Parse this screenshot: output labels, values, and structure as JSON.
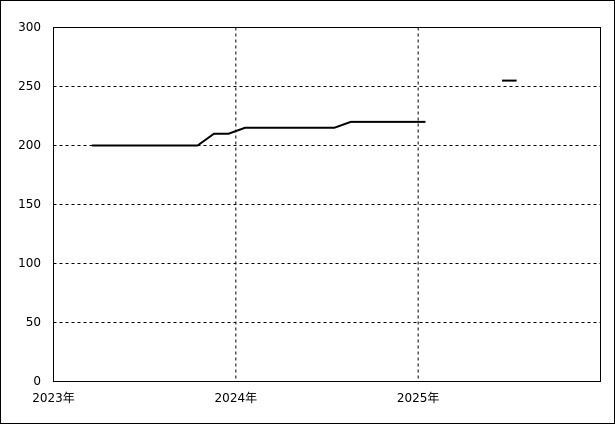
{
  "chart_data": {
    "type": "line",
    "x": [
      2023.21,
      2023.79,
      2023.88,
      2023.96,
      2024.05,
      2024.54,
      2024.63,
      2025.04,
      2025.25,
      2025.46,
      2025.54
    ],
    "series": [
      {
        "color": "#000000",
        "values": [
          200,
          200,
          210,
          210,
          215,
          215,
          220,
          220,
          null,
          255,
          255
        ]
      }
    ],
    "xlim": [
      2023,
      2026
    ],
    "xticks": [
      {
        "value": 2023,
        "label": "2023年"
      },
      {
        "value": 2024,
        "label": "2024年"
      },
      {
        "value": 2025,
        "label": "2025年"
      }
    ],
    "ylim": [
      0,
      300
    ],
    "yticks": [
      0,
      50,
      100,
      150,
      200,
      250,
      300
    ],
    "grid": true
  }
}
